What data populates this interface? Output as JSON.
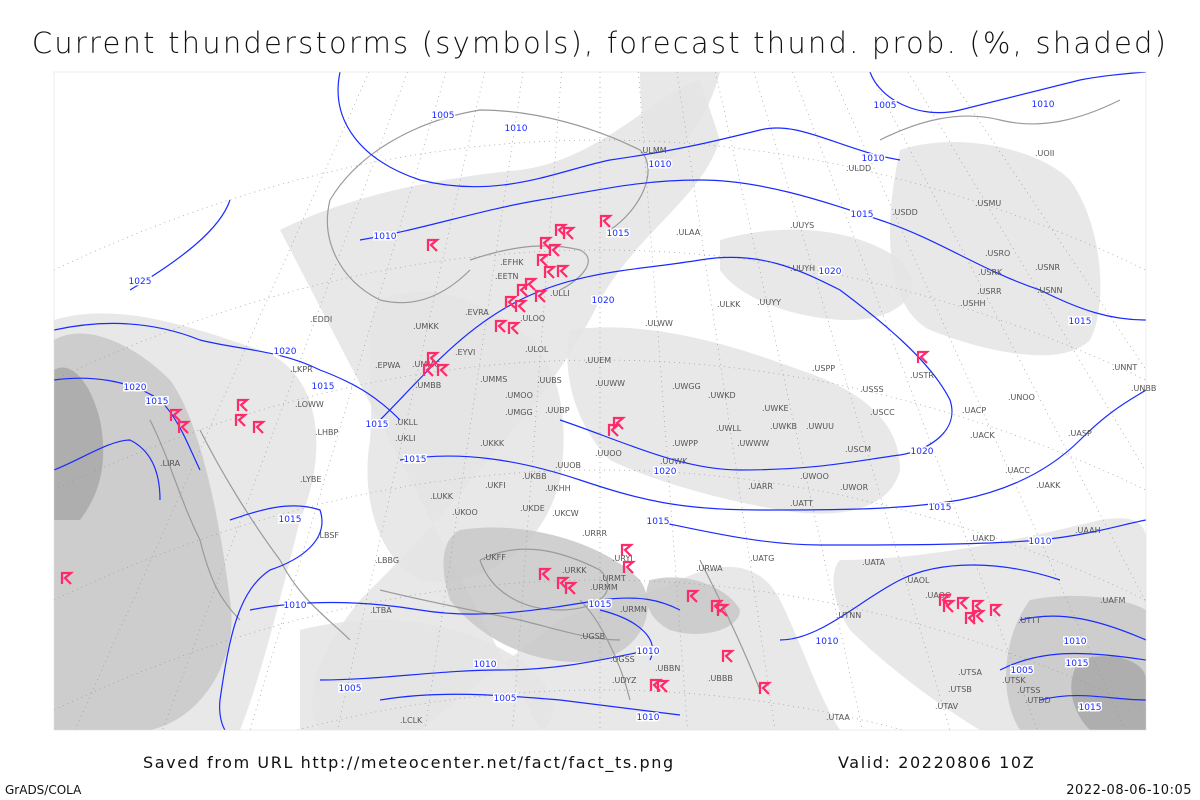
{
  "title": "Current thunderstorms (symbols), forecast thund. prob. (%, shaded)",
  "footer": {
    "source": "Saved from URL http://meteocenter.net/fact/fact_ts.png",
    "valid": "Valid: 20220806 10Z",
    "software": "GrADS/COLA",
    "timestamp": "2022-08-06-10:05"
  },
  "colors": {
    "isobar": "#1a2bff",
    "thunderstorm_symbol": "#ff2a6a",
    "coastline": "#9a9a9a",
    "shading_light": "#e4e4e4",
    "shading_mid": "#c8c8c8",
    "shading_dark": "#a8a8a8"
  },
  "legend_icons": {
    "thunderstorm": "thunderstorm-symbol-icon"
  },
  "isobar_labels": [
    "1005",
    "1010",
    "1010",
    "1005",
    "1010",
    "1010",
    "1015",
    "1020",
    "1015",
    "1015",
    "1020",
    "1010",
    "1025",
    "1020",
    "1015",
    "1020",
    "1015",
    "1015",
    "1015",
    "1020",
    "1020",
    "1015",
    "1010",
    "1015",
    "1015",
    "1010",
    "1015",
    "1010",
    "1010",
    "1005",
    "1005",
    "1010",
    "1010",
    "1010",
    "1015",
    "1005",
    "1015"
  ],
  "stations": [
    "EFHK",
    "EETN",
    "ULLI",
    "ULOO",
    "EVRA",
    "UMKK",
    "EYVI",
    "UMMG",
    "UMBB",
    "UMMS",
    "UMOO",
    "ULOL",
    "UUEM",
    "UUWW",
    "UUBS",
    "UUBP",
    "UMGG",
    "UKKK",
    "UUOO",
    "UUOB",
    "UKHH",
    "ULAA",
    "ULMM",
    "ULKK",
    "UUYY",
    "ULWW",
    "UUYH",
    "UUYS",
    "USSS",
    "USPP",
    "UWKD",
    "UWGG",
    "UWKE",
    "UWKB",
    "UWUU",
    "UWLL",
    "UWWW",
    "UWPP",
    "USCC",
    "USCM",
    "UWOO",
    "UARR",
    "UATT",
    "UWOR",
    "UAKK",
    "UACC",
    "UACK",
    "UASP",
    "UACP",
    "UNOO",
    "UNNT",
    "UNBB",
    "USTR",
    "USHH",
    "USRR",
    "USNN",
    "USRK",
    "USNR",
    "USRO",
    "USMU",
    "USDD",
    "ULDD",
    "UOII",
    "EDDI",
    "LKPR",
    "LOWW",
    "LHBP",
    "LYBE",
    "LBSF",
    "LBBG",
    "LTBA",
    "LIRA",
    "EPWA",
    "LUKK",
    "UKOO",
    "UKBB",
    "UKDE",
    "UKCW",
    "URRR",
    "URYI",
    "UKFF",
    "URKK",
    "URMT",
    "URMM",
    "URMN",
    "UGSB",
    "UGSS",
    "UBBB",
    "UDYZ",
    "URWA",
    "UATG",
    "UAKD",
    "UATA",
    "UAOL",
    "UAOO",
    "UAAH",
    "UTNN",
    "UTAA",
    "UTSA",
    "UTSB",
    "UTAV",
    "UTSK",
    "UTSS",
    "UTDD",
    "UTTT",
    "UAFM",
    "UKLL",
    "UKLI",
    "LCLK",
    "UUWK",
    "UKFI",
    "UBBN"
  ]
}
